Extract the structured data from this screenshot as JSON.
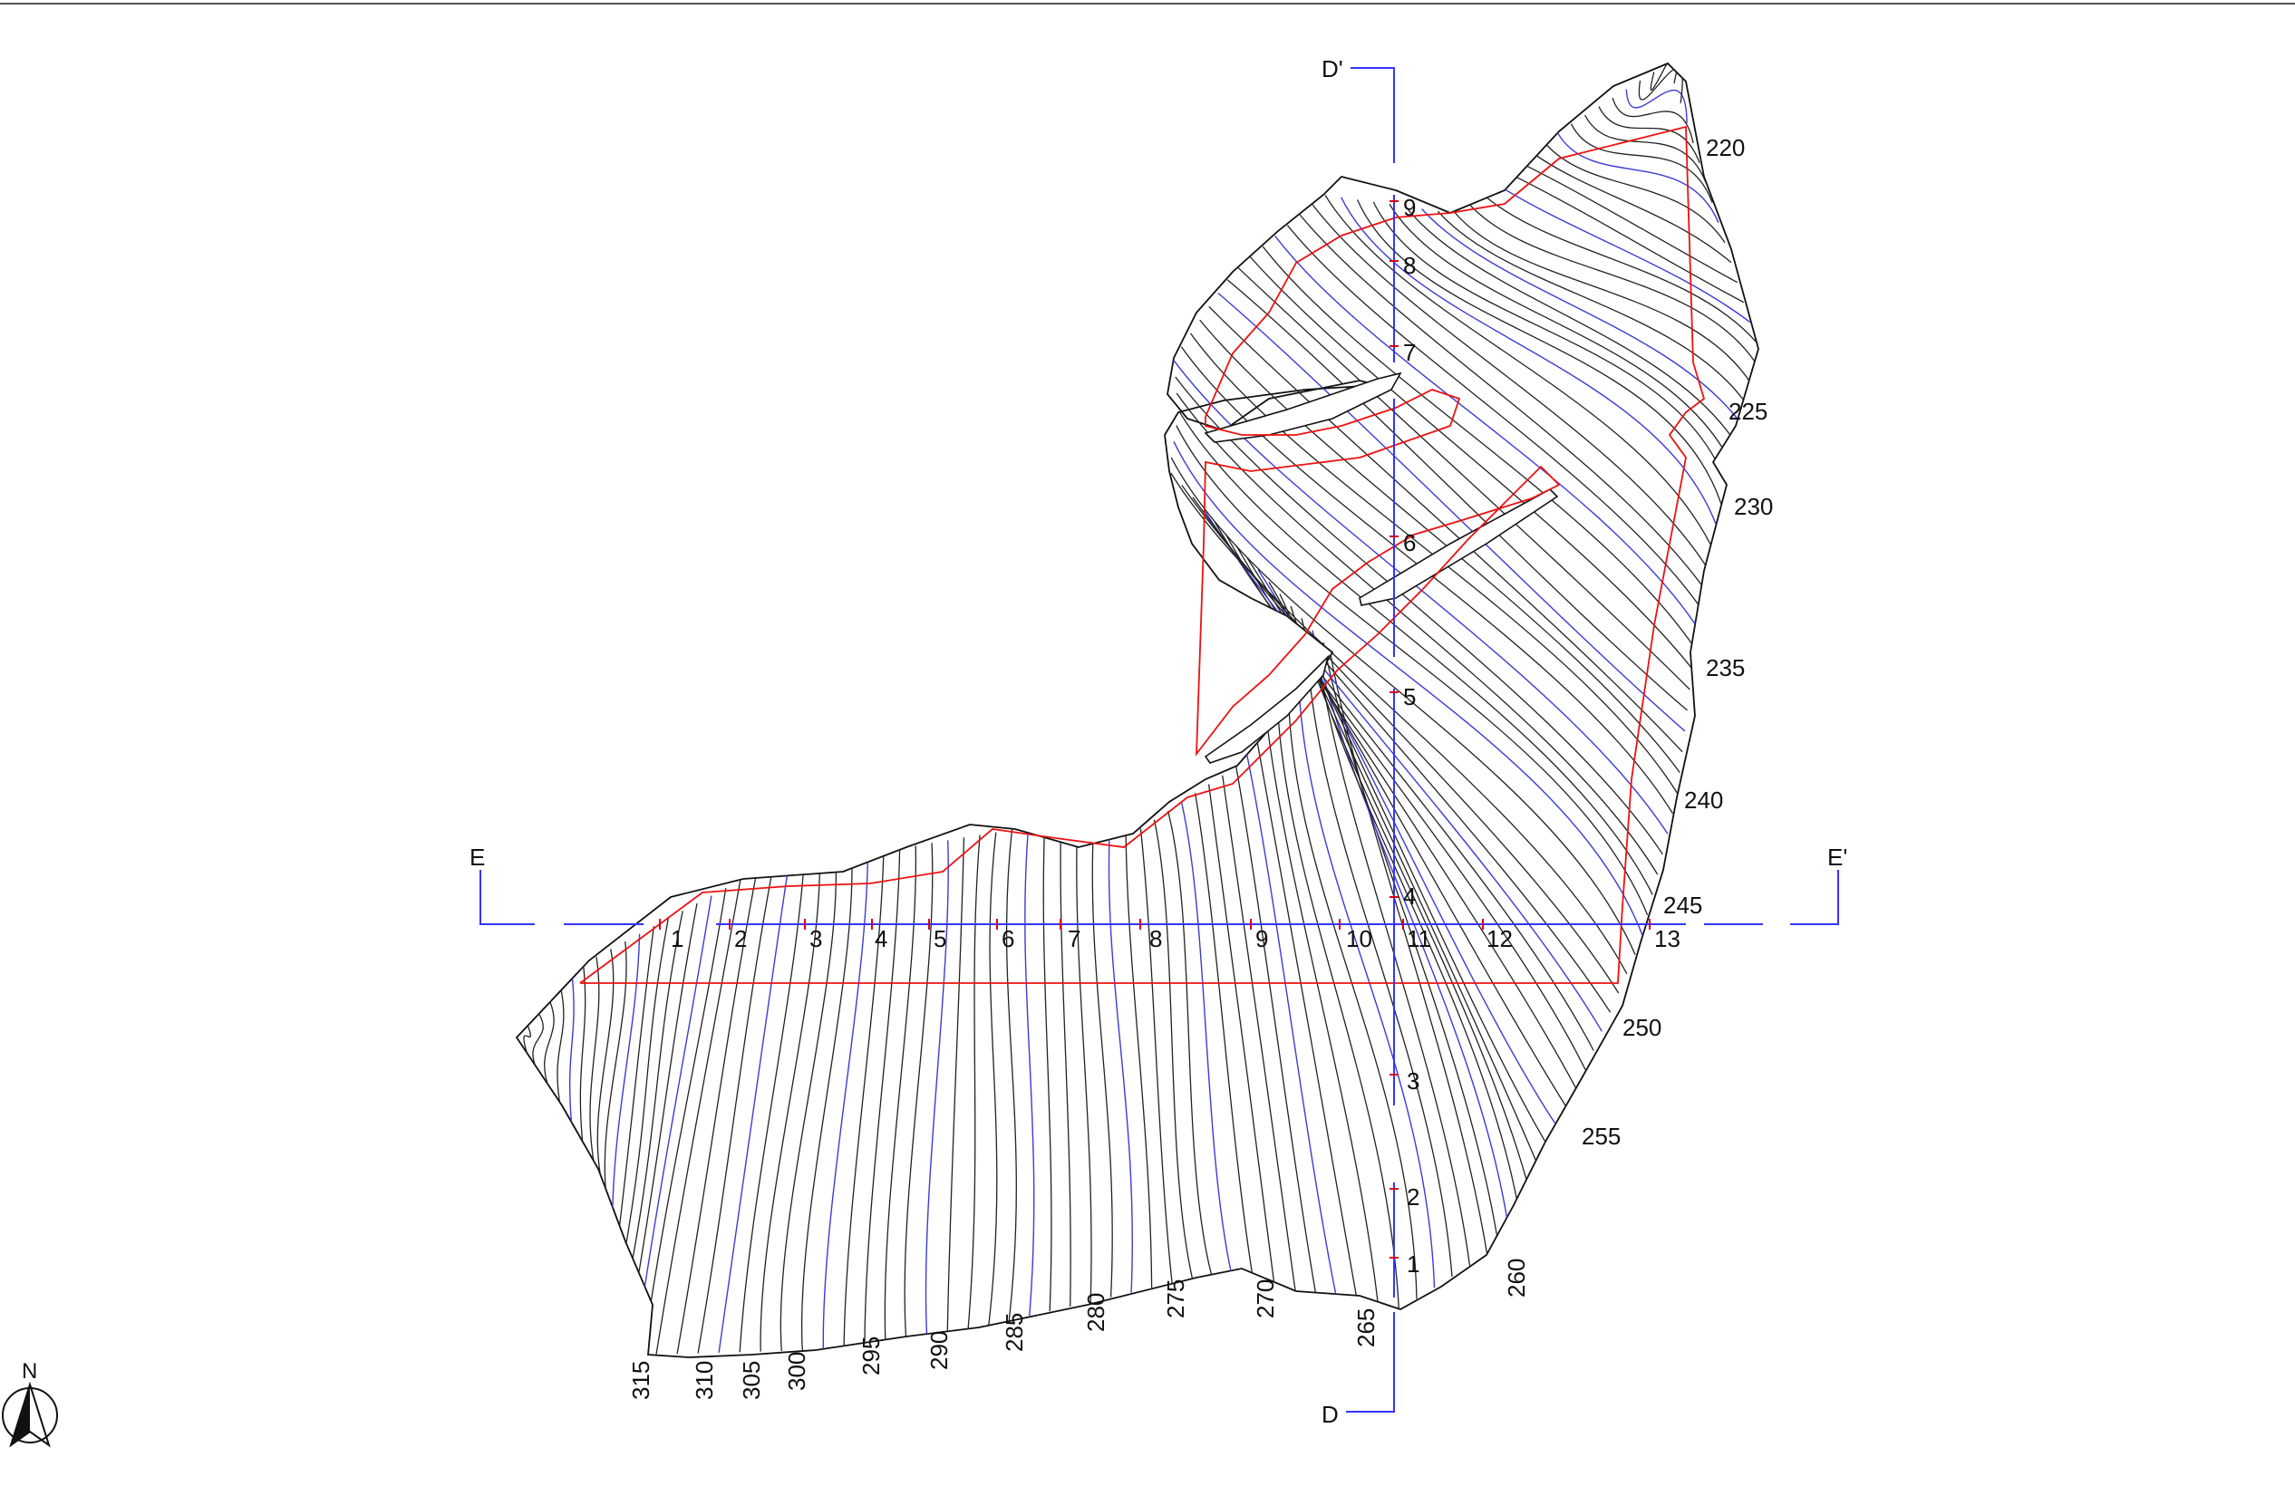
{
  "colors": {
    "contour": "#222222",
    "index_contour": "#3b3bd6",
    "section_line": "#3434ff",
    "site_boundary": "#ee1111"
  },
  "section_D": {
    "start_label": "D",
    "end_label": "D'",
    "stations": [
      "1",
      "2",
      "3",
      "4",
      "5",
      "6",
      "7",
      "8",
      "9"
    ]
  },
  "section_E": {
    "start_label": "E",
    "end_label": "E'",
    "stations": [
      "1",
      "2",
      "3",
      "4",
      "5",
      "6",
      "7",
      "8",
      "9",
      "10",
      "11",
      "12",
      "13"
    ]
  },
  "contour_labels_bottom": [
    "315",
    "310",
    "305",
    "300",
    "295",
    "290",
    "285",
    "280",
    "275",
    "270",
    "265",
    "260"
  ],
  "contour_labels_right": [
    "255",
    "250",
    "245",
    "240",
    "235",
    "230",
    "225",
    "220"
  ],
  "north_arrow": {
    "label": "N",
    "icon": "north-arrow-icon"
  }
}
